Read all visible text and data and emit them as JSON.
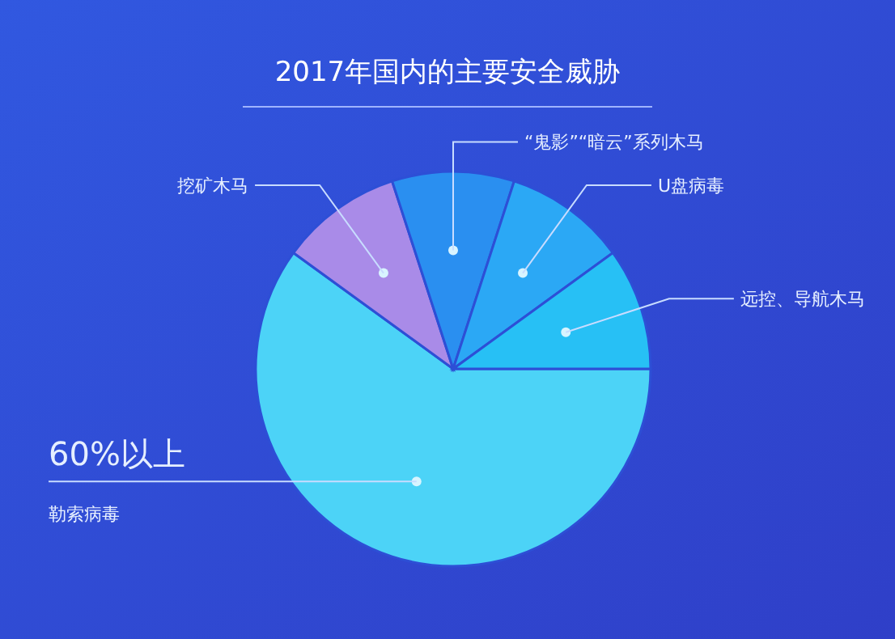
{
  "chart_data": {
    "type": "pie",
    "title": "2017年国内的主要安全威胁",
    "categories": [
      "勒索病毒",
      "挖矿木马",
      "“鬼影”“暗云”系列木马",
      "U盘病毒",
      "远控、导航木马"
    ],
    "values": [
      60,
      10,
      10,
      10,
      10
    ],
    "colors": [
      "#4cd3f7",
      "#a98be8",
      "#2a8ff0",
      "#2ba8f5",
      "#27c0f5"
    ],
    "value_labels": [
      "60%以上",
      null,
      null,
      null,
      null
    ]
  }
}
